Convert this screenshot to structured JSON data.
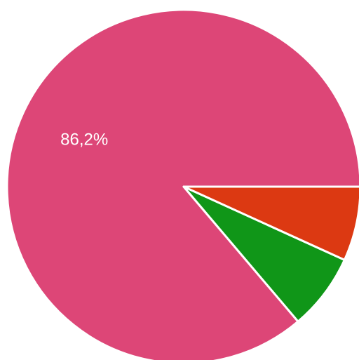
{
  "chart_data": {
    "type": "pie",
    "slices": [
      {
        "value": 86.2,
        "label": "86,2%",
        "color": "#dd4677"
      },
      {
        "value": 7.0,
        "label": "",
        "color": "#109618"
      },
      {
        "value": 6.8,
        "label": "",
        "color": "#dc3912"
      }
    ],
    "start_angle_deg": 0,
    "direction": "clockwise-from-east",
    "title": "",
    "legend": "none"
  }
}
